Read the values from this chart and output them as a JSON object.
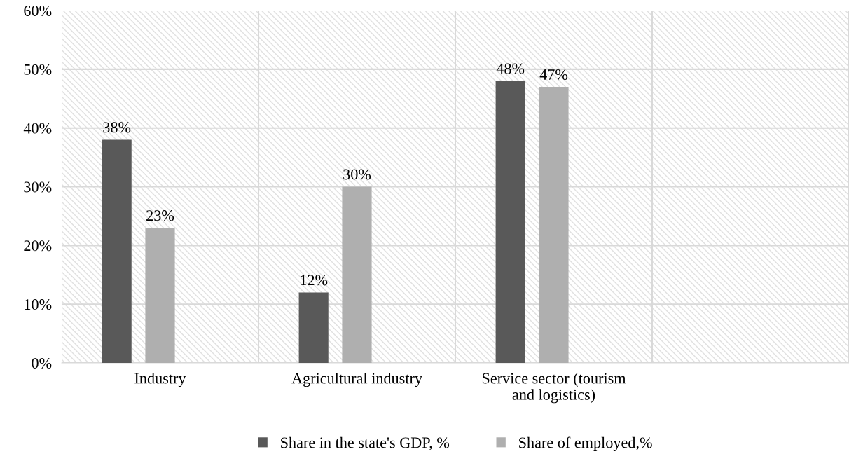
{
  "chart_data": {
    "type": "bar",
    "categories": [
      "Industry",
      "Agricultural industry",
      "Service sector (tourism\nand logistics)",
      null
    ],
    "series": [
      {
        "name": "Share in the state's GDP, %",
        "color": "#595959",
        "values": [
          38,
          12,
          48,
          null
        ],
        "value_labels": [
          "38%",
          "12%",
          "48%",
          null
        ]
      },
      {
        "name": "Share of employed,%",
        "color": "#afafaf",
        "values": [
          23,
          30,
          47,
          null
        ],
        "value_labels": [
          "23%",
          "30%",
          "47%",
          null
        ]
      }
    ],
    "ylim": [
      0,
      60
    ],
    "yticks": [
      {
        "value": 0,
        "label": "0%"
      },
      {
        "value": 10,
        "label": "10%"
      },
      {
        "value": 20,
        "label": "20%"
      },
      {
        "value": 30,
        "label": "30%"
      },
      {
        "value": 40,
        "label": "40%"
      },
      {
        "value": 50,
        "label": "50%"
      },
      {
        "value": 60,
        "label": "60%"
      }
    ],
    "grid": true,
    "legend": "bottom"
  }
}
